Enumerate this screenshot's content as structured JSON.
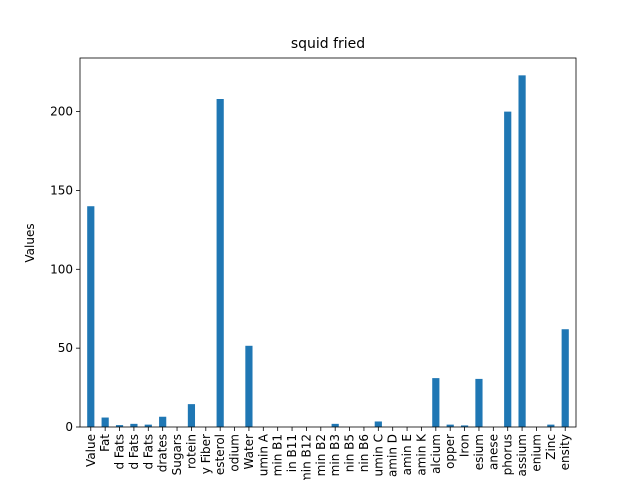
{
  "chart_data": {
    "type": "bar",
    "title": "squid fried",
    "xlabel": "",
    "ylabel": "Values",
    "ylim": [
      0,
      234
    ],
    "yticks": [
      0,
      50,
      100,
      150,
      200
    ],
    "grid": false,
    "legend": "none",
    "bar_color": "#1f77b4",
    "categories": [
      "Value",
      "Fat",
      "d Fats",
      "d Fats",
      "d Fats",
      "drates",
      "Sugars",
      "rotein",
      "y Fiber",
      "esterol",
      "odium",
      "Water",
      "umin A",
      "min B1",
      "in B11",
      "min B12",
      "min B2",
      "min B3",
      "nin B5",
      "nin B6",
      "umin C",
      "amin D",
      "amin E",
      "amin K",
      "alcium",
      "opper",
      "Iron",
      "esium",
      "anese",
      "phorus",
      "assium",
      "enium",
      "Zinc",
      "ensity"
    ],
    "values": [
      140,
      6,
      1.2,
      2,
      1.5,
      6.5,
      0,
      14.5,
      0,
      208,
      0,
      51.5,
      0,
      0,
      0,
      0,
      0,
      2,
      0,
      0,
      3.5,
      0,
      0,
      0,
      31,
      1.5,
      1,
      30.5,
      0,
      200,
      223,
      0,
      1.5,
      62
    ]
  }
}
